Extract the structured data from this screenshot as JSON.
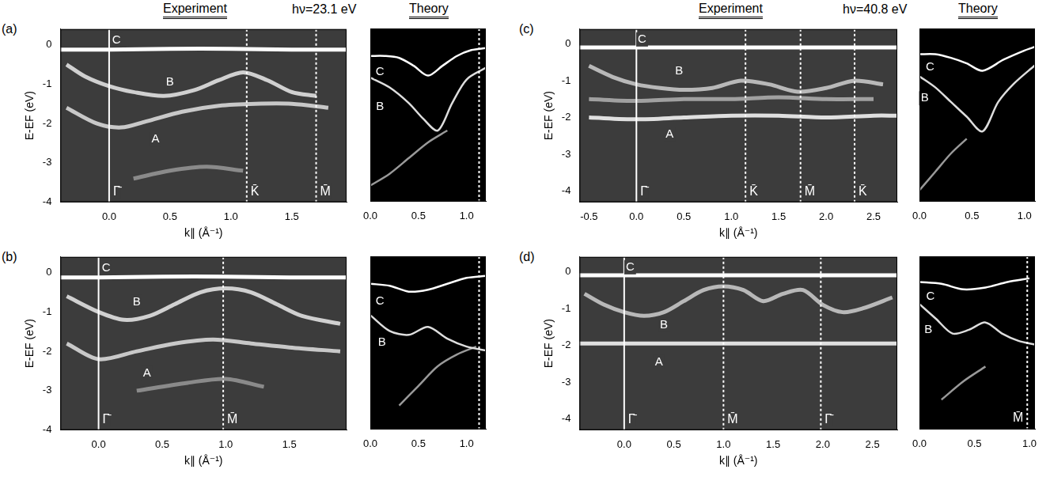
{
  "chart_data": [
    {
      "type": "line",
      "panel_label": "(a)",
      "title": "Experiment",
      "subtitle": "hν=23.1 eV",
      "x_label": "k∥ (Å⁻¹)",
      "y_label": "E-EF (eV)",
      "grid": false,
      "xlim": [
        -0.4,
        1.95
      ],
      "ylim": [
        -4,
        0.4
      ],
      "xticks": [
        {
          "value": 0,
          "label": "0.0"
        },
        0.5,
        {
          "value": 1,
          "label": "1.0"
        },
        1.5
      ],
      "yticks": [
        -4,
        -3,
        -2,
        -1,
        0
      ],
      "series": [
        {
          "color": "#ffffff",
          "x": [
            -0.4,
            0,
            0.5,
            1.0,
            1.5,
            1.95
          ],
          "values": [
            -0.12,
            -0.12,
            -0.1,
            -0.1,
            -0.12,
            -0.12
          ]
        },
        {
          "color": "#d0d0d0",
          "x": [
            -0.35,
            -0.2,
            0,
            0.2,
            0.45,
            0.7,
            0.9,
            1.1,
            1.3,
            1.5,
            1.7
          ],
          "values": [
            -0.5,
            -0.8,
            -1.05,
            -1.2,
            -1.3,
            -1.15,
            -0.9,
            -0.7,
            -0.9,
            -1.2,
            -1.3
          ]
        },
        {
          "color": "#c8c8c8",
          "x": [
            -0.35,
            -0.1,
            0.1,
            0.3,
            0.6,
            0.9,
            1.2,
            1.5,
            1.8
          ],
          "values": [
            -1.6,
            -2.0,
            -2.1,
            -1.95,
            -1.7,
            -1.55,
            -1.5,
            -1.5,
            -1.6
          ]
        },
        {
          "color": "#8a8a8a",
          "x": [
            0.2,
            0.5,
            0.8,
            1.1
          ],
          "values": [
            -3.4,
            -3.2,
            -3.1,
            -3.2
          ]
        }
      ],
      "annotations": [
        {
          "text": "C",
          "x": 0.06,
          "y": 0.12
        },
        {
          "text": "B",
          "x": 0.5,
          "y": -0.95
        },
        {
          "text": "A",
          "x": 0.38,
          "y": -2.4
        }
      ],
      "vlines": [
        {
          "x": 0,
          "label": "Γ̄",
          "line_style": "solid"
        },
        {
          "x": 1.13,
          "label": "K̄",
          "line_style": "dashed"
        },
        {
          "x": 1.7,
          "label": "M̄",
          "line_style": "dashed"
        }
      ]
    },
    {
      "type": "line",
      "title": "Theory",
      "grid": false,
      "tick_labels": "x",
      "xlim": [
        0,
        1.2
      ],
      "ylim": [
        -4,
        0.4
      ],
      "xticks": [
        {
          "value": 0,
          "label": "0.0"
        },
        0.5,
        {
          "value": 1,
          "label": "1.0"
        }
      ],
      "series": [
        {
          "color": "#ffffff",
          "x": [
            0,
            0.15,
            0.3,
            0.45,
            0.6,
            0.75,
            0.9,
            1.05,
            1.2
          ],
          "values": [
            -0.3,
            -0.3,
            -0.35,
            -0.55,
            -0.8,
            -0.55,
            -0.3,
            -0.15,
            -0.1
          ]
        },
        {
          "color": "#dddddd",
          "x": [
            0,
            0.2,
            0.4,
            0.55,
            0.7,
            0.85,
            1.0,
            1.2
          ],
          "values": [
            -0.85,
            -1.1,
            -1.5,
            -1.9,
            -2.2,
            -1.5,
            -0.9,
            -0.6
          ]
        },
        {
          "color": "#999999",
          "x": [
            0,
            0.2,
            0.4,
            0.6,
            0.8
          ],
          "values": [
            -3.6,
            -3.3,
            -2.9,
            -2.5,
            -2.2
          ]
        }
      ],
      "annotations": [
        {
          "text": "C",
          "x": 0.1,
          "y": -0.7
        },
        {
          "text": "B",
          "x": 0.1,
          "y": -1.6
        }
      ],
      "vlines": [
        {
          "x": 1.13,
          "line_style": "dashed"
        }
      ]
    },
    {
      "type": "line",
      "panel_label": "(b)",
      "x_label": "k∥ (Å⁻¹)",
      "y_label": "E-EF (eV)",
      "grid": false,
      "xlim": [
        -0.3,
        1.95
      ],
      "ylim": [
        -4,
        0.4
      ],
      "xticks": [
        {
          "value": 0,
          "label": "0.0"
        },
        0.5,
        {
          "value": 1,
          "label": "1.0"
        },
        1.5
      ],
      "yticks": [
        -4,
        -3,
        -2,
        -1,
        0
      ],
      "series": [
        {
          "color": "#ffffff",
          "x": [
            -0.3,
            0,
            0.5,
            1.0,
            1.5,
            1.95
          ],
          "values": [
            -0.12,
            -0.12,
            -0.1,
            -0.1,
            -0.12,
            -0.12
          ]
        },
        {
          "color": "#d0d0d0",
          "x": [
            -0.25,
            0,
            0.2,
            0.4,
            0.6,
            0.8,
            1.0,
            1.2,
            1.4,
            1.6,
            1.9
          ],
          "values": [
            -0.6,
            -1.0,
            -1.2,
            -1.1,
            -0.8,
            -0.5,
            -0.4,
            -0.5,
            -0.8,
            -1.1,
            -1.3
          ]
        },
        {
          "color": "#c8c8c8",
          "x": [
            -0.25,
            0,
            0.3,
            0.6,
            0.9,
            1.2,
            1.5,
            1.9
          ],
          "values": [
            -1.8,
            -2.2,
            -2.0,
            -1.8,
            -1.7,
            -1.8,
            -1.9,
            -2.0
          ]
        },
        {
          "color": "#8a8a8a",
          "x": [
            0.3,
            0.7,
            1.0,
            1.3
          ],
          "values": [
            -3.0,
            -2.8,
            -2.7,
            -2.9
          ]
        }
      ],
      "annotations": [
        {
          "text": "C",
          "x": 0.06,
          "y": 0.12
        },
        {
          "text": "B",
          "x": 0.3,
          "y": -0.75
        },
        {
          "text": "A",
          "x": 0.38,
          "y": -2.55
        }
      ],
      "vlines": [
        {
          "x": 0,
          "label": "Γ̄",
          "line_style": "solid"
        },
        {
          "x": 0.98,
          "label": "M̄",
          "line_style": "dashed"
        }
      ]
    },
    {
      "type": "line",
      "grid": false,
      "tick_labels": "x",
      "xlim": [
        0,
        1.2
      ],
      "ylim": [
        -4,
        0.4
      ],
      "xticks": [
        {
          "value": 0,
          "label": "0.0"
        },
        0.5,
        {
          "value": 1,
          "label": "1.0"
        }
      ],
      "series": [
        {
          "color": "#ffffff",
          "x": [
            0,
            0.2,
            0.4,
            0.6,
            0.8,
            1.0,
            1.2
          ],
          "values": [
            -0.3,
            -0.35,
            -0.5,
            -0.45,
            -0.3,
            -0.15,
            -0.1
          ]
        },
        {
          "color": "#dddddd",
          "x": [
            0,
            0.2,
            0.4,
            0.6,
            0.8,
            1.0,
            1.2
          ],
          "values": [
            -1.1,
            -1.5,
            -1.6,
            -1.4,
            -1.7,
            -1.9,
            -2.0
          ]
        },
        {
          "color": "#999999",
          "x": [
            0.3,
            0.5,
            0.7,
            0.9,
            1.1
          ],
          "values": [
            -3.4,
            -2.9,
            -2.4,
            -2.1,
            -1.9
          ]
        }
      ],
      "annotations": [
        {
          "text": "C",
          "x": 0.1,
          "y": -0.75
        },
        {
          "text": "B",
          "x": 0.12,
          "y": -1.8
        }
      ],
      "vlines": [
        {
          "x": 1.13,
          "line_style": "dashed"
        }
      ]
    },
    {
      "type": "line",
      "panel_label": "(c)",
      "title": "Experiment",
      "subtitle": "hν=40.8 eV",
      "x_label": "k∥ (Å⁻¹)",
      "y_label": "E-EF (eV)",
      "grid": false,
      "xlim": [
        -0.6,
        2.75
      ],
      "ylim": [
        -4.3,
        0.4
      ],
      "xticks": [
        -0.5,
        {
          "value": 0,
          "label": "0.0"
        },
        0.5,
        {
          "value": 1,
          "label": "1.0"
        },
        1.5,
        {
          "value": 2,
          "label": "2.0"
        },
        2.5
      ],
      "yticks": [
        -4,
        -3,
        -2,
        -1,
        0
      ],
      "series": [
        {
          "color": "#ffffff",
          "x": [
            -0.6,
            0,
            0.5,
            1.0,
            1.5,
            2.0,
            2.5,
            2.75
          ],
          "values": [
            -0.1,
            -0.1,
            -0.1,
            -0.1,
            -0.1,
            -0.1,
            -0.1,
            -0.1
          ]
        },
        {
          "color": "#b8b8b8",
          "x": [
            -0.5,
            -0.25,
            0,
            0.25,
            0.5,
            0.8,
            1.1,
            1.4,
            1.7,
            2.0,
            2.3,
            2.6
          ],
          "values": [
            -0.6,
            -0.9,
            -1.1,
            -1.2,
            -1.25,
            -1.2,
            -1.0,
            -1.1,
            -1.3,
            -1.2,
            -1.0,
            -1.1
          ]
        },
        {
          "color": "#a0a0a0",
          "x": [
            -0.5,
            0,
            0.5,
            1.0,
            1.5,
            2.0,
            2.5
          ],
          "values": [
            -1.5,
            -1.55,
            -1.5,
            -1.5,
            -1.45,
            -1.5,
            -1.5
          ]
        },
        {
          "color": "#e0e0e0",
          "x": [
            -0.5,
            0,
            0.5,
            1.0,
            1.5,
            2.0,
            2.5,
            2.75
          ],
          "values": [
            -2.0,
            -2.05,
            -2.0,
            -1.95,
            -1.95,
            -2.0,
            -1.95,
            -1.95
          ]
        }
      ],
      "annotations": [
        {
          "text": "C",
          "x": 0.06,
          "y": 0.12
        },
        {
          "text": "B",
          "x": 0.45,
          "y": -0.75
        },
        {
          "text": "A",
          "x": 0.35,
          "y": -2.45
        }
      ],
      "vlines": [
        {
          "x": 0,
          "label": "Γ̄",
          "line_style": "solid"
        },
        {
          "x": 1.15,
          "label": "K̄",
          "line_style": "dashed"
        },
        {
          "x": 1.73,
          "label": "M̄",
          "line_style": "dashed"
        },
        {
          "x": 2.3,
          "label": "K̄",
          "line_style": "dashed"
        }
      ]
    },
    {
      "type": "line",
      "title": "Theory",
      "grid": false,
      "tick_labels": "x",
      "xlim": [
        0,
        1.1
      ],
      "ylim": [
        -4.3,
        0.4
      ],
      "xticks": [
        {
          "value": 0,
          "label": "0.0"
        },
        0.5,
        {
          "value": 1,
          "label": "1.0"
        }
      ],
      "series": [
        {
          "color": "#ffffff",
          "x": [
            0,
            0.15,
            0.3,
            0.45,
            0.6,
            0.8,
            1.0,
            1.1
          ],
          "values": [
            -0.3,
            -0.3,
            -0.4,
            -0.55,
            -0.75,
            -0.45,
            -0.2,
            -0.1
          ]
        },
        {
          "color": "#dddddd",
          "x": [
            0,
            0.15,
            0.3,
            0.45,
            0.6,
            0.75,
            0.9,
            1.1
          ],
          "values": [
            -0.9,
            -1.2,
            -1.6,
            -2.0,
            -2.4,
            -1.6,
            -1.1,
            -0.6
          ]
        },
        {
          "color": "#999999",
          "x": [
            0,
            0.15,
            0.3,
            0.45
          ],
          "values": [
            -4.0,
            -3.5,
            -3.0,
            -2.6
          ]
        }
      ],
      "annotations": [
        {
          "text": "C",
          "x": 0.1,
          "y": -0.65
        },
        {
          "text": "B",
          "x": 0.05,
          "y": -1.5
        }
      ]
    },
    {
      "type": "line",
      "panel_label": "(d)",
      "x_label": "k∥ (Å⁻¹)",
      "y_label": "E-EF (eV)",
      "grid": false,
      "xlim": [
        -0.45,
        2.75
      ],
      "ylim": [
        -4.3,
        0.4
      ],
      "xticks": [
        {
          "value": 0,
          "label": "0.0"
        },
        0.5,
        {
          "value": 1,
          "label": "1.0"
        },
        1.5,
        {
          "value": 2,
          "label": "2.0"
        },
        2.5
      ],
      "yticks": [
        -4,
        -3,
        -2,
        -1,
        0
      ],
      "series": [
        {
          "color": "#ffffff",
          "x": [
            -0.45,
            0,
            0.5,
            1.0,
            1.5,
            2.0,
            2.5,
            2.75
          ],
          "values": [
            -0.1,
            -0.1,
            -0.1,
            -0.1,
            -0.1,
            -0.1,
            -0.1,
            -0.1
          ]
        },
        {
          "color": "#b8b8b8",
          "x": [
            -0.4,
            -0.2,
            0,
            0.2,
            0.4,
            0.6,
            0.8,
            1.0,
            1.2,
            1.4,
            1.6,
            1.8,
            2.0,
            2.2,
            2.4,
            2.7
          ],
          "values": [
            -0.6,
            -0.9,
            -1.1,
            -1.2,
            -1.1,
            -0.8,
            -0.5,
            -0.4,
            -0.5,
            -0.8,
            -0.6,
            -0.5,
            -0.9,
            -1.1,
            -1.0,
            -0.7
          ]
        },
        {
          "color": "#e0e0e0",
          "x": [
            -0.45,
            0,
            0.5,
            1.0,
            1.5,
            2.0,
            2.5,
            2.75
          ],
          "values": [
            -1.95,
            -1.95,
            -1.95,
            -1.95,
            -1.95,
            -1.95,
            -1.95,
            -1.95
          ]
        }
      ],
      "annotations": [
        {
          "text": "C",
          "x": 0.06,
          "y": 0.12
        },
        {
          "text": "B",
          "x": 0.4,
          "y": -1.45
        },
        {
          "text": "A",
          "x": 0.35,
          "y": -2.45
        }
      ],
      "vlines": [
        {
          "x": 0,
          "label": "Γ̄",
          "line_style": "solid"
        },
        {
          "x": 1.0,
          "label": "M̄",
          "line_style": "dashed"
        },
        {
          "x": 1.98,
          "label": "Γ̄",
          "line_style": "dashed"
        }
      ]
    },
    {
      "type": "line",
      "grid": false,
      "tick_labels": "x",
      "xlim": [
        0,
        1.05
      ],
      "ylim": [
        -4.3,
        0.4
      ],
      "xticks": [
        {
          "value": 0,
          "label": "0.0"
        },
        0.5,
        {
          "value": 1,
          "label": "1.0"
        }
      ],
      "series": [
        {
          "color": "#ffffff",
          "x": [
            0,
            0.2,
            0.4,
            0.6,
            0.8,
            1.0
          ],
          "values": [
            -0.3,
            -0.35,
            -0.5,
            -0.45,
            -0.3,
            -0.2
          ]
        },
        {
          "color": "#dddddd",
          "x": [
            0,
            0.15,
            0.3,
            0.45,
            0.6,
            0.75,
            0.9,
            1.05
          ],
          "values": [
            -0.9,
            -1.3,
            -1.7,
            -1.6,
            -1.4,
            -1.7,
            -1.9,
            -2.0
          ]
        },
        {
          "color": "#999999",
          "x": [
            0.2,
            0.4,
            0.6
          ],
          "values": [
            -3.5,
            -3.0,
            -2.6
          ]
        }
      ],
      "annotations": [
        {
          "text": "C",
          "x": 0.1,
          "y": -0.7
        },
        {
          "text": "B",
          "x": 0.08,
          "y": -1.6
        }
      ],
      "vlines": [
        {
          "x": 0.98,
          "label": "M̄",
          "line_style": "dashed"
        }
      ]
    }
  ]
}
